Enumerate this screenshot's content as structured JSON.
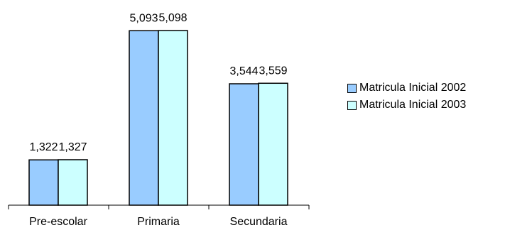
{
  "chart_data": {
    "type": "bar",
    "categories": [
      "Pre-escolar",
      "Primaria",
      "Secundaria"
    ],
    "series": [
      {
        "name": "Matricula Inicial 2002",
        "values": [
          1322,
          5093,
          3544
        ],
        "labels": [
          "1,322",
          "5,093",
          "3,544"
        ],
        "color": "#99ccff"
      },
      {
        "name": "Matricula Inicial 2003",
        "values": [
          1327,
          5098,
          3559
        ],
        "labels": [
          "1,327",
          "5,098",
          "3,559"
        ],
        "color": "#ccffff"
      }
    ],
    "ylim": [
      0,
      6000
    ],
    "grid": false,
    "legend_position": "right"
  }
}
